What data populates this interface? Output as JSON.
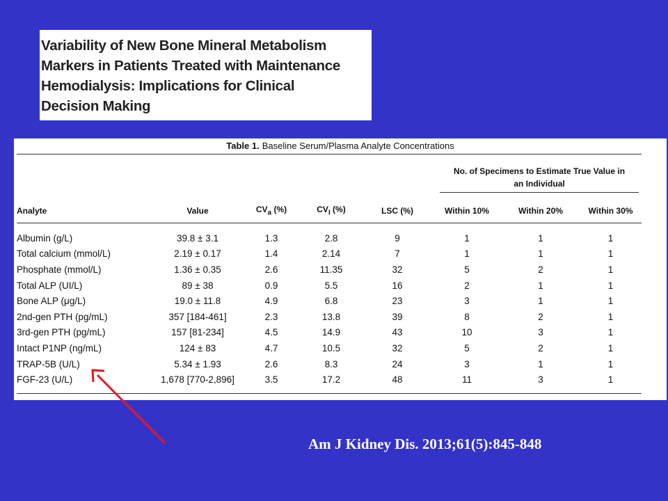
{
  "paper_title": "Variability of New Bone Mineral Metabolism\nMarkers in Patients Treated with Maintenance\nHemodialysis: Implications for Clinical\nDecision Making",
  "table": {
    "caption_label": "Table 1.",
    "caption_text": "Baseline Serum/Plasma Analyte Concentrations",
    "spanner": "No. of Specimens to Estimate True Value in\nan Individual",
    "headers": {
      "analyte": "Analyte",
      "value": "Value",
      "cva_main": "CV",
      "cva_sub": "a",
      "cva_unit": " (%)",
      "cvi_main": "CV",
      "cvi_sub": "I",
      "cvi_unit": " (%)",
      "lsc": "LSC (%)",
      "w10": "Within 10%",
      "w20": "Within 20%",
      "w30": "Within 30%"
    },
    "rows": [
      {
        "analyte": "Albumin (g/L)",
        "value": "39.8 ± 3.1",
        "cva": "1.3",
        "cvi": "2.8",
        "lsc": "9",
        "w10": "1",
        "w20": "1",
        "w30": "1"
      },
      {
        "analyte": "Total calcium (mmol/L)",
        "value": "2.19 ± 0.17",
        "cva": "1.4",
        "cvi": "2.14",
        "lsc": "7",
        "w10": "1",
        "w20": "1",
        "w30": "1"
      },
      {
        "analyte": "Phosphate (mmol/L)",
        "value": "1.36 ± 0.35",
        "cva": "2.6",
        "cvi": "11.35",
        "lsc": "32",
        "w10": "5",
        "w20": "2",
        "w30": "1"
      },
      {
        "analyte": "Total ALP (UI/L)",
        "value": "89 ± 38",
        "cva": "0.9",
        "cvi": "5.5",
        "lsc": "16",
        "w10": "2",
        "w20": "1",
        "w30": "1"
      },
      {
        "analyte": "Bone ALP (μg/L)",
        "value": "19.0 ± 11.8",
        "cva": "4.9",
        "cvi": "6.8",
        "lsc": "23",
        "w10": "3",
        "w20": "1",
        "w30": "1"
      },
      {
        "analyte": "2nd-gen PTH (pg/mL)",
        "value": "357 [184-461]",
        "cva": "2.3",
        "cvi": "13.8",
        "lsc": "39",
        "w10": "8",
        "w20": "2",
        "w30": "1"
      },
      {
        "analyte": "3rd-gen PTH (pg/mL)",
        "value": "157 [81-234]",
        "cva": "4.5",
        "cvi": "14.9",
        "lsc": "43",
        "w10": "10",
        "w20": "3",
        "w30": "1"
      },
      {
        "analyte": "Intact P1NP (ng/mL)",
        "value": "124 ± 83",
        "cva": "4.7",
        "cvi": "10.5",
        "lsc": "32",
        "w10": "5",
        "w20": "2",
        "w30": "1"
      },
      {
        "analyte": "TRAP-5B (U/L)",
        "value": "5.34 ± 1.93",
        "cva": "2.6",
        "cvi": "8.3",
        "lsc": "24",
        "w10": "3",
        "w20": "1",
        "w30": "1"
      },
      {
        "analyte": "FGF-23 (U/L)",
        "value": "1,678 [770-2,896]",
        "cva": "3.5",
        "cvi": "17.2",
        "lsc": "48",
        "w10": "11",
        "w20": "3",
        "w30": "1"
      }
    ]
  },
  "annotation": {
    "arrow_color": "#e8161c",
    "points_to_row": "TRAP-5B (U/L)"
  },
  "citation": "Am J Kidney Dis. 2013;61(5):845-848",
  "colors": {
    "background": "#3333c8",
    "panel": "#ffffff",
    "citation_text": "#ffffff"
  }
}
